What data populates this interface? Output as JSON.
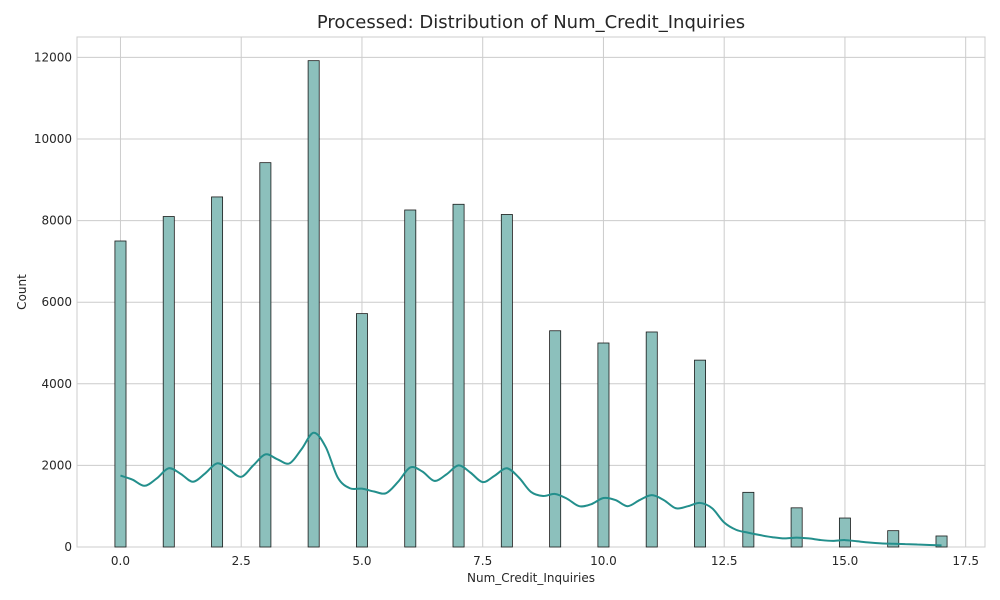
{
  "chart_data": {
    "type": "histogram",
    "title": "Processed: Distribution of Num_Credit_Inquiries",
    "xlabel": "Num_Credit_Inquiries",
    "ylabel": "Count",
    "xlim": [
      -0.9,
      17.9
    ],
    "ylim": [
      0,
      12500
    ],
    "xticks": [
      0.0,
      2.5,
      5.0,
      7.5,
      10.0,
      12.5,
      15.0,
      17.5
    ],
    "xtick_labels": [
      "0.0",
      "2.5",
      "5.0",
      "7.5",
      "10.0",
      "12.5",
      "15.0",
      "17.5"
    ],
    "yticks": [
      0,
      2000,
      4000,
      6000,
      8000,
      10000,
      12000
    ],
    "ytick_labels": [
      "0",
      "2000",
      "4000",
      "6000",
      "8000",
      "10000",
      "12000"
    ],
    "grid": true,
    "bar_color": "#8cc0bc",
    "kde_color": "#238f8c",
    "bin_width": 0.23,
    "x": [
      0,
      1,
      2,
      3,
      4,
      5,
      6,
      7,
      8,
      9,
      10,
      11,
      12,
      13,
      14,
      15,
      16,
      17
    ],
    "counts": [
      7500,
      8100,
      8580,
      9420,
      11920,
      5720,
      8260,
      8400,
      8150,
      5300,
      5000,
      5270,
      4580,
      1340,
      960,
      710,
      400,
      270
    ],
    "kde": {
      "x": [
        0,
        0.25,
        0.5,
        0.75,
        1,
        1.25,
        1.5,
        1.75,
        2,
        2.25,
        2.5,
        2.75,
        3,
        3.25,
        3.5,
        3.75,
        4,
        4.25,
        4.5,
        4.75,
        5,
        5.25,
        5.5,
        5.75,
        6,
        6.25,
        6.5,
        6.75,
        7,
        7.25,
        7.5,
        7.75,
        8,
        8.25,
        8.5,
        8.75,
        9,
        9.25,
        9.5,
        9.75,
        10,
        10.25,
        10.5,
        10.75,
        11,
        11.25,
        11.5,
        11.75,
        12,
        12.25,
        12.5,
        12.75,
        13,
        13.25,
        13.5,
        13.75,
        14,
        14.25,
        14.5,
        14.75,
        15,
        15.25,
        15.5,
        15.75,
        16,
        16.25,
        16.5,
        16.75,
        17
      ],
      "y": [
        1750,
        1650,
        1500,
        1680,
        1930,
        1790,
        1600,
        1800,
        2050,
        1900,
        1720,
        2000,
        2270,
        2150,
        2050,
        2400,
        2800,
        2450,
        1700,
        1440,
        1430,
        1360,
        1320,
        1600,
        1950,
        1850,
        1620,
        1780,
        2000,
        1820,
        1590,
        1750,
        1930,
        1700,
        1350,
        1250,
        1300,
        1180,
        1000,
        1050,
        1200,
        1150,
        1000,
        1150,
        1270,
        1150,
        950,
        1000,
        1080,
        950,
        600,
        420,
        350,
        290,
        240,
        210,
        230,
        210,
        170,
        150,
        170,
        140,
        110,
        90,
        80,
        70,
        60,
        50,
        40
      ]
    }
  }
}
